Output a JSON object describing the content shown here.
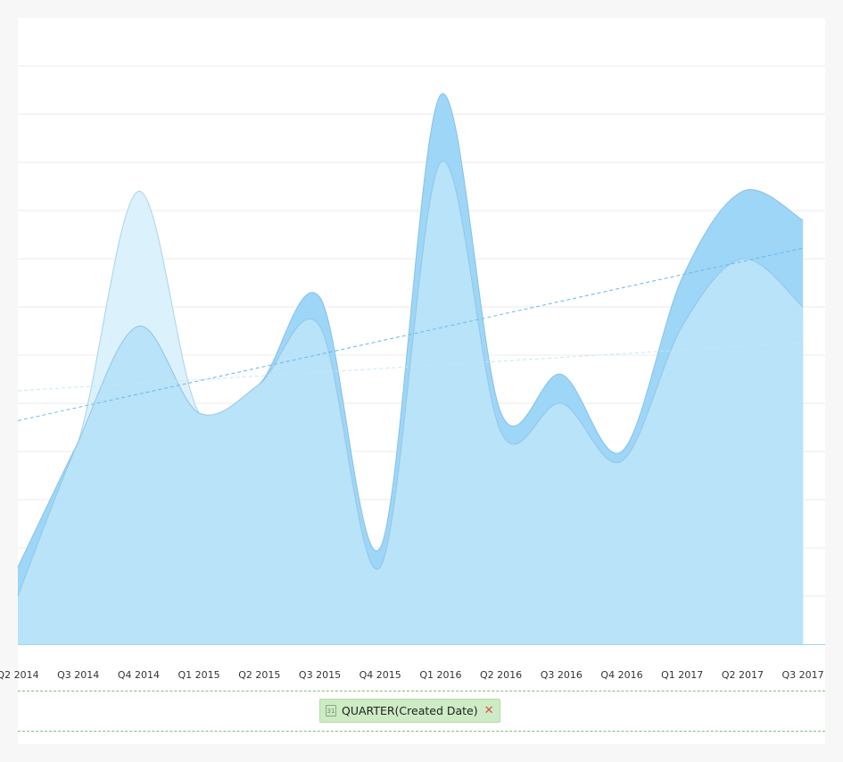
{
  "chart_data": {
    "type": "area",
    "smooth": true,
    "stacked": true,
    "categories": [
      "Q2 2014",
      "Q3 2014",
      "Q4 2014",
      "Q1 2015",
      "Q2 2015",
      "Q3 2015",
      "Q4 2015",
      "Q1 2016",
      "Q2 2016",
      "Q3 2016",
      "Q4 2016",
      "Q1 2017",
      "Q2 2017",
      "Q3 2017"
    ],
    "series": [
      {
        "values": [
          5,
          21,
          33,
          24,
          27,
          33,
          8,
          50,
          22,
          25,
          19,
          33,
          40,
          35
        ],
        "color": "#b8e3f8",
        "stroke": "#94c6e6"
      },
      {
        "values": [
          3,
          0,
          0,
          0,
          0,
          3,
          2,
          7,
          2,
          3,
          1,
          5,
          7,
          9
        ],
        "color": "#9dd6f7",
        "stroke": "#8ac3ea"
      },
      {
        "values": [
          0,
          0,
          14,
          0,
          0,
          0,
          0,
          0,
          0,
          0,
          0,
          0,
          0,
          0
        ],
        "color": "#dbf1fc",
        "stroke": "#a9d3ea"
      }
    ],
    "trendlines": [
      {
        "from": 23.2,
        "to": 41.1,
        "color": "#6bb8ea"
      },
      {
        "from": 26.3,
        "to": 31.3,
        "color": "#c8e6f7"
      }
    ],
    "ylim": [
      0,
      60
    ],
    "grid": true,
    "title": "",
    "xlabel": "",
    "ylabel": ""
  },
  "filter_pill": {
    "label": "QUARTER(Created Date)",
    "icon": "calendar-icon",
    "icon_text": "31"
  }
}
